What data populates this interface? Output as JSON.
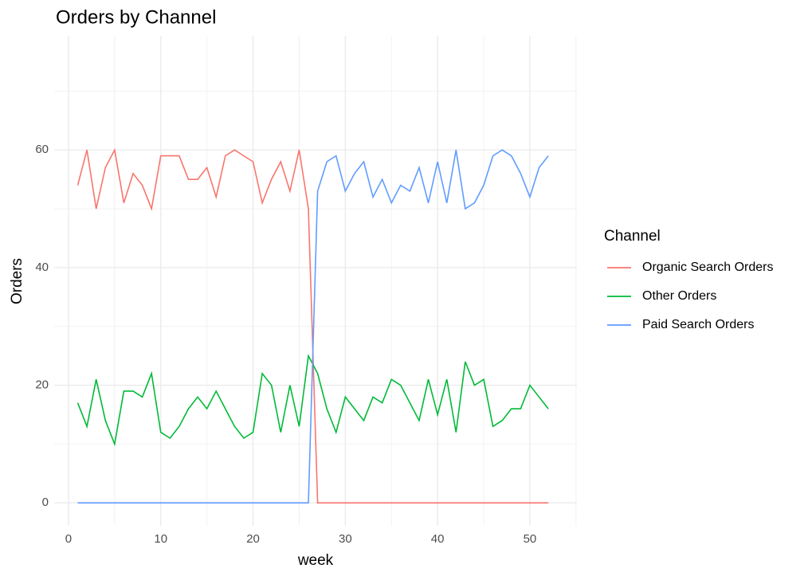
{
  "chart_data": {
    "type": "line",
    "title": "Orders by Channel",
    "x_label": "week",
    "y_label": "Orders",
    "legend_title": "Channel",
    "x": [
      1,
      2,
      3,
      4,
      5,
      6,
      7,
      8,
      9,
      10,
      11,
      12,
      13,
      14,
      15,
      16,
      17,
      18,
      19,
      20,
      21,
      22,
      23,
      24,
      25,
      26,
      27,
      28,
      29,
      30,
      31,
      32,
      33,
      34,
      35,
      36,
      37,
      38,
      39,
      40,
      41,
      42,
      43,
      44,
      45,
      46,
      47,
      48,
      49,
      50,
      51,
      52
    ],
    "series": [
      {
        "name": "Organic Search Orders",
        "color": "#F8766D",
        "values": [
          54,
          60,
          50,
          57,
          60,
          51,
          56,
          54,
          50,
          59,
          59,
          59,
          55,
          55,
          57,
          52,
          59,
          60,
          59,
          58,
          51,
          55,
          58,
          53,
          60,
          50,
          0,
          0,
          0,
          0,
          0,
          0,
          0,
          0,
          0,
          0,
          0,
          0,
          0,
          0,
          0,
          0,
          0,
          0,
          0,
          0,
          0,
          0,
          0,
          0,
          0,
          0
        ]
      },
      {
        "name": "Other Orders",
        "color": "#00BA38",
        "values": [
          17,
          13,
          21,
          14,
          10,
          19,
          19,
          18,
          22,
          12,
          11,
          13,
          16,
          18,
          16,
          19,
          16,
          13,
          11,
          12,
          22,
          20,
          12,
          20,
          13,
          25,
          22,
          16,
          12,
          18,
          16,
          14,
          18,
          17,
          21,
          20,
          17,
          14,
          21,
          15,
          21,
          12,
          24,
          20,
          21,
          13,
          14,
          16,
          16,
          20,
          18,
          16
        ]
      },
      {
        "name": "Paid Search Orders",
        "color": "#619CFF",
        "values": [
          0,
          0,
          0,
          0,
          0,
          0,
          0,
          0,
          0,
          0,
          0,
          0,
          0,
          0,
          0,
          0,
          0,
          0,
          0,
          0,
          0,
          0,
          0,
          0,
          0,
          0,
          53,
          58,
          59,
          53,
          56,
          58,
          52,
          55,
          51,
          54,
          53,
          57,
          51,
          58,
          51,
          60,
          50,
          51,
          54,
          59,
          60,
          59,
          56,
          52,
          57,
          59
        ]
      }
    ],
    "xlim": [
      -1.55,
      55.1
    ],
    "ylim": [
      -3.9,
      79.4
    ],
    "xticks": [
      0,
      10,
      20,
      30,
      40,
      50
    ],
    "yticks": [
      0,
      20,
      40,
      60
    ],
    "grid": true
  }
}
